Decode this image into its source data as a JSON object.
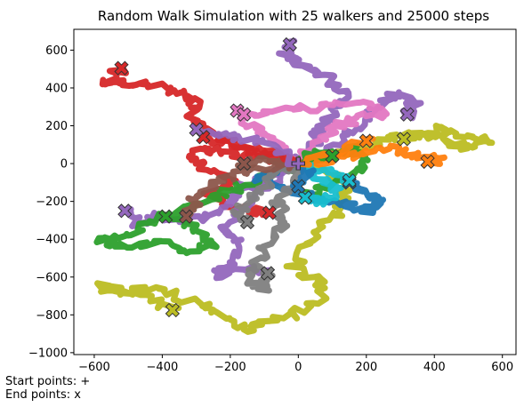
{
  "chart_data": {
    "type": "scatter",
    "title": "Random Walk Simulation with 25 walkers and 25000 steps",
    "xlabel": "",
    "ylabel": "",
    "xlim": [
      -660,
      640
    ],
    "ylim": [
      -1010,
      710
    ],
    "x_ticks": [
      -600,
      -400,
      -200,
      0,
      200,
      400,
      600
    ],
    "y_ticks": [
      -1000,
      -800,
      -600,
      -400,
      -200,
      0,
      200,
      400,
      600
    ],
    "x_tick_labels": [
      "−600",
      "−400",
      "−200",
      "0",
      "200",
      "400",
      "600"
    ],
    "y_tick_labels": [
      "−1000",
      "−800",
      "−600",
      "−400",
      "−200",
      "0",
      "200",
      "400",
      "600"
    ],
    "grid": false,
    "annotations": [
      "Start points: +",
      "End points: x"
    ],
    "walkers": [
      {
        "color": "#bcbd22",
        "start": [
          0,
          0
        ],
        "end": [
          -370,
          -775
        ],
        "path": [
          [
            0,
            0
          ],
          [
            80,
            -40
          ],
          [
            140,
            -120
          ],
          [
            120,
            -250
          ],
          [
            60,
            -320
          ],
          [
            30,
            -420
          ],
          [
            -20,
            -560
          ],
          [
            60,
            -600
          ],
          [
            80,
            -720
          ],
          [
            -20,
            -800
          ],
          [
            -110,
            -840
          ],
          [
            -160,
            -880
          ],
          [
            -230,
            -790
          ],
          [
            -300,
            -740
          ],
          [
            -400,
            -660
          ],
          [
            -500,
            -680
          ],
          [
            -580,
            -650
          ],
          [
            -470,
            -700
          ],
          [
            -370,
            -775
          ]
        ]
      },
      {
        "color": "#bcbd22",
        "start": [
          0,
          0
        ],
        "end": [
          310,
          130
        ],
        "path": [
          [
            0,
            0
          ],
          [
            80,
            30
          ],
          [
            160,
            80
          ],
          [
            240,
            120
          ],
          [
            320,
            160
          ],
          [
            400,
            140
          ],
          [
            480,
            90
          ],
          [
            560,
            110
          ],
          [
            500,
            150
          ],
          [
            420,
            190
          ],
          [
            330,
            140
          ],
          [
            310,
            130
          ]
        ]
      },
      {
        "color": "#d62728",
        "start": [
          0,
          0
        ],
        "end": [
          -520,
          505
        ],
        "path": [
          [
            0,
            0
          ],
          [
            -60,
            40
          ],
          [
            -140,
            60
          ],
          [
            -200,
            120
          ],
          [
            -260,
            180
          ],
          [
            -320,
            220
          ],
          [
            -300,
            320
          ],
          [
            -360,
            380
          ],
          [
            -440,
            420
          ],
          [
            -520,
            420
          ],
          [
            -560,
            430
          ],
          [
            -520,
            505
          ]
        ]
      },
      {
        "color": "#d62728",
        "start": [
          0,
          0
        ],
        "end": [
          -85,
          -260
        ],
        "path": [
          [
            0,
            0
          ],
          [
            -80,
            20
          ],
          [
            -160,
            40
          ],
          [
            -250,
            80
          ],
          [
            -310,
            60
          ],
          [
            -280,
            -20
          ],
          [
            -200,
            -100
          ],
          [
            -260,
            -160
          ],
          [
            -200,
            -220
          ],
          [
            -120,
            -250
          ],
          [
            -85,
            -260
          ]
        ]
      },
      {
        "color": "#9467bd",
        "start": [
          0,
          0
        ],
        "end": [
          -25,
          630
        ],
        "path": [
          [
            0,
            0
          ],
          [
            40,
            80
          ],
          [
            60,
            180
          ],
          [
            100,
            260
          ],
          [
            140,
            340
          ],
          [
            120,
            420
          ],
          [
            60,
            480
          ],
          [
            0,
            540
          ],
          [
            -40,
            580
          ],
          [
            -25,
            630
          ]
        ]
      },
      {
        "color": "#9467bd",
        "start": [
          0,
          0
        ],
        "end": [
          -510,
          -250
        ],
        "path": [
          [
            0,
            0
          ],
          [
            -80,
            -60
          ],
          [
            -160,
            -120
          ],
          [
            -200,
            -200
          ],
          [
            -260,
            -280
          ],
          [
            -340,
            -300
          ],
          [
            -420,
            -280
          ],
          [
            -470,
            -330
          ],
          [
            -510,
            -250
          ]
        ]
      },
      {
        "color": "#9467bd",
        "start": [
          0,
          0
        ],
        "end": [
          -90,
          -580
        ],
        "path": [
          [
            0,
            0
          ],
          [
            -60,
            -80
          ],
          [
            -140,
            -160
          ],
          [
            -180,
            -260
          ],
          [
            -220,
            -360
          ],
          [
            -160,
            -420
          ],
          [
            -200,
            -520
          ],
          [
            -250,
            -600
          ],
          [
            -150,
            -560
          ],
          [
            -90,
            -580
          ]
        ]
      },
      {
        "color": "#9467bd",
        "start": [
          0,
          0
        ],
        "end": [
          320,
          260
        ],
        "path": [
          [
            0,
            0
          ],
          [
            80,
            80
          ],
          [
            160,
            160
          ],
          [
            200,
            260
          ],
          [
            260,
            330
          ],
          [
            300,
            380
          ],
          [
            340,
            300
          ],
          [
            320,
            260
          ]
        ]
      },
      {
        "color": "#2ca02c",
        "start": [
          0,
          0
        ],
        "end": [
          -390,
          -280
        ],
        "path": [
          [
            0,
            0
          ],
          [
            -100,
            -80
          ],
          [
            -200,
            -140
          ],
          [
            -260,
            -200
          ],
          [
            -340,
            -240
          ],
          [
            -420,
            -300
          ],
          [
            -500,
            -380
          ],
          [
            -580,
            -400
          ],
          [
            -520,
            -440
          ],
          [
            -420,
            -420
          ],
          [
            -330,
            -460
          ],
          [
            -250,
            -430
          ],
          [
            -300,
            -340
          ],
          [
            -390,
            -280
          ]
        ]
      },
      {
        "color": "#2ca02c",
        "start": [
          0,
          0
        ],
        "end": [
          20,
          -180
        ],
        "path": [
          [
            0,
            0
          ],
          [
            80,
            40
          ],
          [
            160,
            80
          ],
          [
            200,
            20
          ],
          [
            160,
            -60
          ],
          [
            80,
            -120
          ],
          [
            20,
            -180
          ]
        ]
      },
      {
        "color": "#1f77b4",
        "start": [
          0,
          0
        ],
        "end": [
          150,
          -100
        ],
        "path": [
          [
            0,
            0
          ],
          [
            -60,
            -40
          ],
          [
            -120,
            -80
          ],
          [
            -40,
            -140
          ],
          [
            60,
            -180
          ],
          [
            140,
            -220
          ],
          [
            200,
            -260
          ],
          [
            240,
            -200
          ],
          [
            190,
            -140
          ],
          [
            150,
            -100
          ]
        ]
      },
      {
        "color": "#ff7f0e",
        "start": [
          0,
          0
        ],
        "end": [
          380,
          10
        ],
        "path": [
          [
            0,
            0
          ],
          [
            100,
            20
          ],
          [
            200,
            60
          ],
          [
            280,
            80
          ],
          [
            340,
            40
          ],
          [
            420,
            20
          ],
          [
            380,
            10
          ]
        ]
      },
      {
        "color": "#7f7f7f",
        "start": [
          0,
          0
        ],
        "end": [
          -150,
          -310
        ],
        "path": [
          [
            0,
            0
          ],
          [
            -60,
            -40
          ],
          [
            -100,
            -120
          ],
          [
            -140,
            -200
          ],
          [
            -180,
            -260
          ],
          [
            -150,
            -310
          ]
        ]
      },
      {
        "color": "#7f7f7f",
        "start": [
          0,
          0
        ],
        "end": [
          -90,
          -580
        ],
        "path": [
          [
            0,
            0
          ],
          [
            -20,
            -100
          ],
          [
            -60,
            -200
          ],
          [
            -40,
            -300
          ],
          [
            -80,
            -400
          ],
          [
            -120,
            -500
          ],
          [
            -140,
            -620
          ],
          [
            -100,
            -660
          ],
          [
            -90,
            -580
          ]
        ]
      },
      {
        "color": "#8c564b",
        "start": [
          0,
          0
        ],
        "end": [
          -330,
          -280
        ],
        "path": [
          [
            0,
            0
          ],
          [
            -80,
            -20
          ],
          [
            -160,
            -40
          ],
          [
            -240,
            -100
          ],
          [
            -300,
            -180
          ],
          [
            -330,
            -280
          ]
        ]
      },
      {
        "color": "#e377c2",
        "start": [
          0,
          0
        ],
        "end": [
          -180,
          280
        ],
        "path": [
          [
            0,
            0
          ],
          [
            -40,
            80
          ],
          [
            -100,
            160
          ],
          [
            -150,
            220
          ],
          [
            -180,
            280
          ]
        ]
      },
      {
        "color": "#e377c2",
        "start": [
          0,
          0
        ],
        "end": [
          -160,
          260
        ],
        "path": [
          [
            0,
            0
          ],
          [
            60,
            120
          ],
          [
            120,
            200
          ],
          [
            180,
            240
          ],
          [
            260,
            260
          ],
          [
            200,
            320
          ],
          [
            80,
            300
          ],
          [
            -40,
            280
          ],
          [
            -160,
            260
          ]
        ]
      },
      {
        "color": "#17becf",
        "start": [
          0,
          0
        ],
        "end": [
          20,
          -180
        ],
        "path": [
          [
            0,
            0
          ],
          [
            40,
            -60
          ],
          [
            80,
            -100
          ],
          [
            120,
            -160
          ],
          [
            60,
            -200
          ],
          [
            20,
            -180
          ]
        ]
      },
      {
        "color": "#17becf",
        "start": [
          0,
          0
        ],
        "end": [
          150,
          -90
        ],
        "path": [
          [
            0,
            0
          ],
          [
            40,
            -20
          ],
          [
            100,
            -40
          ],
          [
            150,
            -90
          ]
        ]
      },
      {
        "color": "#8c564b",
        "start": [
          0,
          0
        ],
        "end": [
          -160,
          0
        ],
        "path": [
          [
            0,
            0
          ],
          [
            -80,
            20
          ],
          [
            -160,
            0
          ]
        ]
      },
      {
        "color": "#1f77b4",
        "start": [
          0,
          0
        ],
        "end": [
          0,
          -120
        ],
        "path": [
          [
            0,
            0
          ],
          [
            40,
            -60
          ],
          [
            0,
            -120
          ]
        ]
      },
      {
        "color": "#2ca02c",
        "start": [
          0,
          0
        ],
        "end": [
          100,
          40
        ],
        "path": [
          [
            0,
            0
          ],
          [
            60,
            60
          ],
          [
            100,
            40
          ]
        ]
      },
      {
        "color": "#d62728",
        "start": [
          0,
          0
        ],
        "end": [
          -280,
          140
        ],
        "path": [
          [
            0,
            0
          ],
          [
            -100,
            80
          ],
          [
            -200,
            100
          ],
          [
            -280,
            140
          ]
        ]
      },
      {
        "color": "#ff7f0e",
        "start": [
          0,
          0
        ],
        "end": [
          200,
          120
        ],
        "path": [
          [
            0,
            0
          ],
          [
            100,
            60
          ],
          [
            200,
            120
          ]
        ]
      },
      {
        "color": "#9467bd",
        "start": [
          0,
          0
        ],
        "end": [
          -300,
          180
        ],
        "path": [
          [
            0,
            0
          ],
          [
            -100,
            120
          ],
          [
            -200,
            150
          ],
          [
            -300,
            180
          ]
        ]
      }
    ]
  }
}
